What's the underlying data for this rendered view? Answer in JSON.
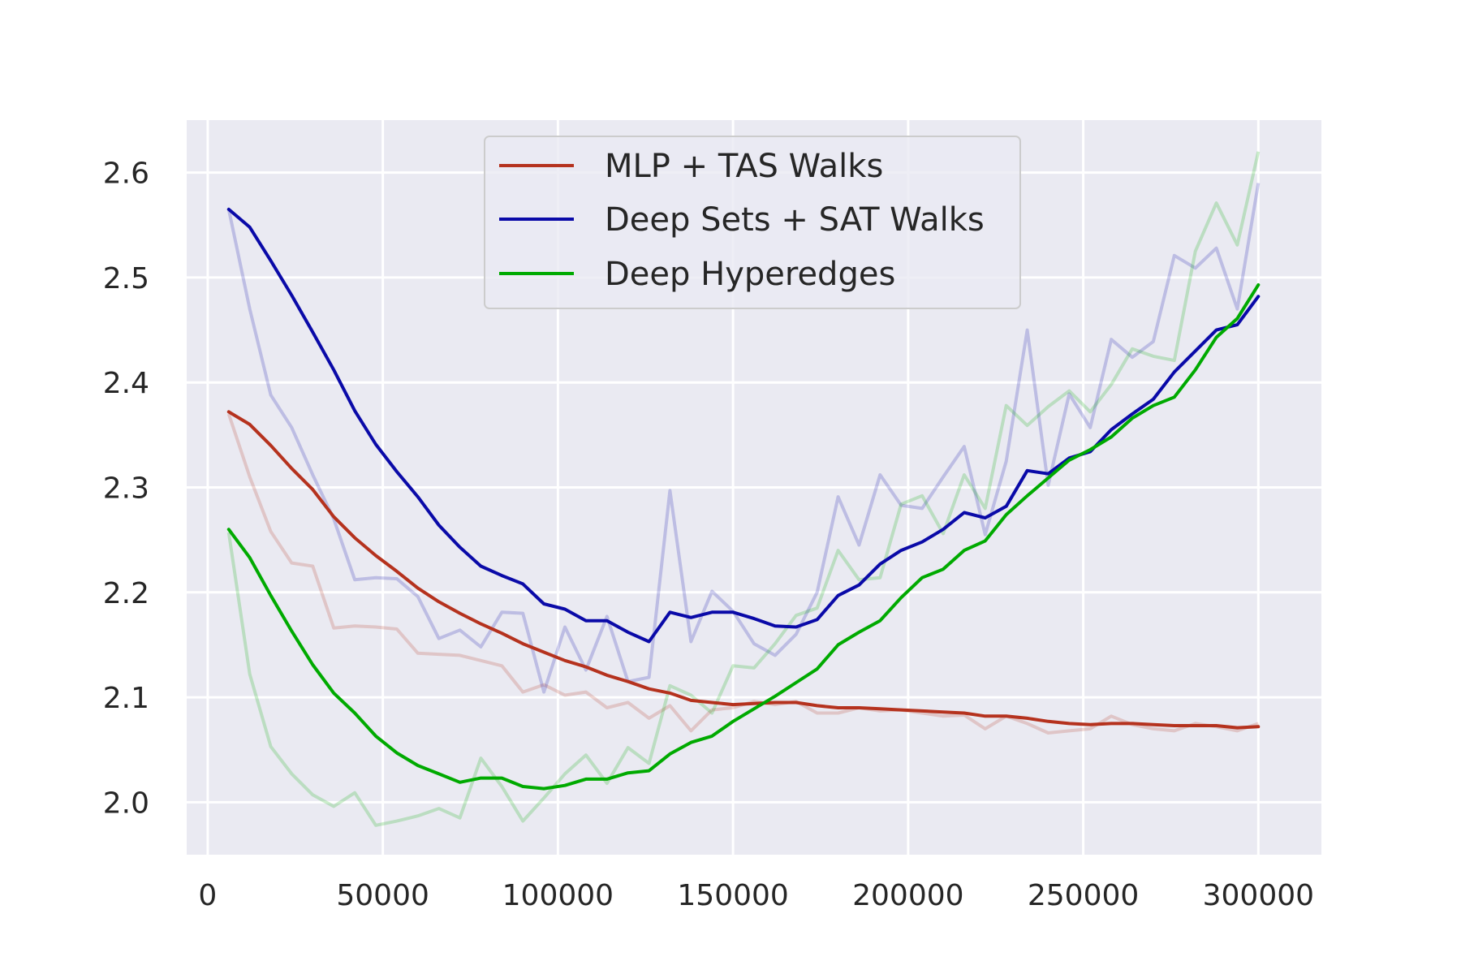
{
  "chart_data": {
    "type": "line",
    "title": "",
    "xlabel": "",
    "ylabel": "",
    "xlim": [
      -6000,
      318000
    ],
    "ylim": [
      1.95,
      2.65
    ],
    "xticks": [
      0,
      50000,
      100000,
      150000,
      200000,
      250000,
      300000
    ],
    "yticks": [
      2.0,
      2.1,
      2.2,
      2.3,
      2.4,
      2.5,
      2.6
    ],
    "x_tick_labels": [
      "0",
      "50000",
      "100000",
      "150000",
      "200000",
      "250000",
      "300000"
    ],
    "y_tick_labels": [
      "2.0",
      "2.1",
      "2.2",
      "2.3",
      "2.4",
      "2.5",
      "2.6"
    ],
    "grid": true,
    "legend_position": "top-center",
    "background": "#eaeaf2",
    "x": [
      6000,
      12000,
      18000,
      24000,
      30000,
      36000,
      42000,
      48000,
      54000,
      60000,
      66000,
      72000,
      78000,
      84000,
      90000,
      96000,
      102000,
      108000,
      114000,
      120000,
      126000,
      132000,
      138000,
      144000,
      150000,
      156000,
      162000,
      168000,
      174000,
      180000,
      186000,
      192000,
      198000,
      204000,
      210000,
      216000,
      222000,
      228000,
      234000,
      240000,
      246000,
      252000,
      258000,
      264000,
      270000,
      276000,
      282000,
      288000,
      294000,
      300000
    ],
    "series": [
      {
        "name": "MLP + TAS Walks",
        "color": "#b5321e",
        "smoothed": [
          2.372,
          2.36,
          2.34,
          2.318,
          2.298,
          2.272,
          2.252,
          2.235,
          2.22,
          2.204,
          2.191,
          2.18,
          2.17,
          2.161,
          2.151,
          2.143,
          2.135,
          2.129,
          2.121,
          2.115,
          2.108,
          2.104,
          2.097,
          2.095,
          2.093,
          2.094,
          2.095,
          2.095,
          2.092,
          2.09,
          2.09,
          2.089,
          2.088,
          2.087,
          2.086,
          2.085,
          2.082,
          2.082,
          2.08,
          2.077,
          2.075,
          2.074,
          2.075,
          2.075,
          2.074,
          2.073,
          2.073,
          2.073,
          2.071,
          2.072
        ],
        "raw": [
          2.37,
          2.31,
          2.258,
          2.228,
          2.225,
          2.166,
          2.168,
          2.167,
          2.165,
          2.142,
          2.141,
          2.14,
          2.135,
          2.13,
          2.105,
          2.112,
          2.102,
          2.105,
          2.09,
          2.095,
          2.08,
          2.092,
          2.068,
          2.088,
          2.09,
          2.096,
          2.093,
          2.096,
          2.085,
          2.085,
          2.09,
          2.087,
          2.088,
          2.085,
          2.082,
          2.083,
          2.07,
          2.082,
          2.075,
          2.066,
          2.068,
          2.07,
          2.082,
          2.074,
          2.07,
          2.068,
          2.075,
          2.072,
          2.068,
          2.075
        ]
      },
      {
        "name": "Deep Sets + SAT Walks",
        "color": "#0a0aa8",
        "smoothed": [
          2.565,
          2.548,
          2.516,
          2.483,
          2.448,
          2.412,
          2.373,
          2.341,
          2.315,
          2.291,
          2.264,
          2.243,
          2.225,
          2.216,
          2.208,
          2.189,
          2.184,
          2.173,
          2.173,
          2.162,
          2.153,
          2.181,
          2.176,
          2.181,
          2.181,
          2.175,
          2.168,
          2.167,
          2.174,
          2.197,
          2.207,
          2.227,
          2.24,
          2.248,
          2.26,
          2.276,
          2.271,
          2.282,
          2.316,
          2.313,
          2.328,
          2.334,
          2.355,
          2.37,
          2.384,
          2.41,
          2.43,
          2.45,
          2.455,
          2.482
        ],
        "raw": [
          2.565,
          2.47,
          2.388,
          2.357,
          2.312,
          2.27,
          2.212,
          2.214,
          2.213,
          2.196,
          2.156,
          2.164,
          2.148,
          2.181,
          2.18,
          2.105,
          2.167,
          2.126,
          2.177,
          2.115,
          2.119,
          2.297,
          2.153,
          2.201,
          2.182,
          2.151,
          2.14,
          2.16,
          2.2,
          2.291,
          2.245,
          2.312,
          2.283,
          2.28,
          2.31,
          2.339,
          2.255,
          2.325,
          2.45,
          2.302,
          2.389,
          2.357,
          2.441,
          2.424,
          2.439,
          2.521,
          2.509,
          2.528,
          2.47,
          2.59
        ]
      },
      {
        "name": "Deep Hyperedges",
        "color": "#00aa00",
        "smoothed": [
          2.26,
          2.233,
          2.197,
          2.163,
          2.131,
          2.104,
          2.085,
          2.063,
          2.047,
          2.035,
          2.027,
          2.019,
          2.023,
          2.023,
          2.015,
          2.013,
          2.016,
          2.022,
          2.022,
          2.028,
          2.03,
          2.046,
          2.057,
          2.063,
          2.077,
          2.089,
          2.101,
          2.114,
          2.127,
          2.15,
          2.162,
          2.173,
          2.195,
          2.214,
          2.222,
          2.24,
          2.249,
          2.274,
          2.292,
          2.309,
          2.326,
          2.336,
          2.348,
          2.366,
          2.378,
          2.386,
          2.412,
          2.443,
          2.461,
          2.493
        ],
        "raw": [
          2.257,
          2.122,
          2.053,
          2.027,
          2.007,
          1.996,
          2.009,
          1.978,
          1.982,
          1.987,
          1.994,
          1.985,
          2.042,
          2.015,
          1.982,
          2.004,
          2.027,
          2.045,
          2.018,
          2.052,
          2.037,
          2.111,
          2.102,
          2.085,
          2.13,
          2.128,
          2.151,
          2.178,
          2.185,
          2.24,
          2.212,
          2.214,
          2.284,
          2.292,
          2.256,
          2.312,
          2.28,
          2.378,
          2.359,
          2.377,
          2.392,
          2.372,
          2.398,
          2.432,
          2.425,
          2.421,
          2.525,
          2.571,
          2.531,
          2.62
        ]
      }
    ]
  }
}
